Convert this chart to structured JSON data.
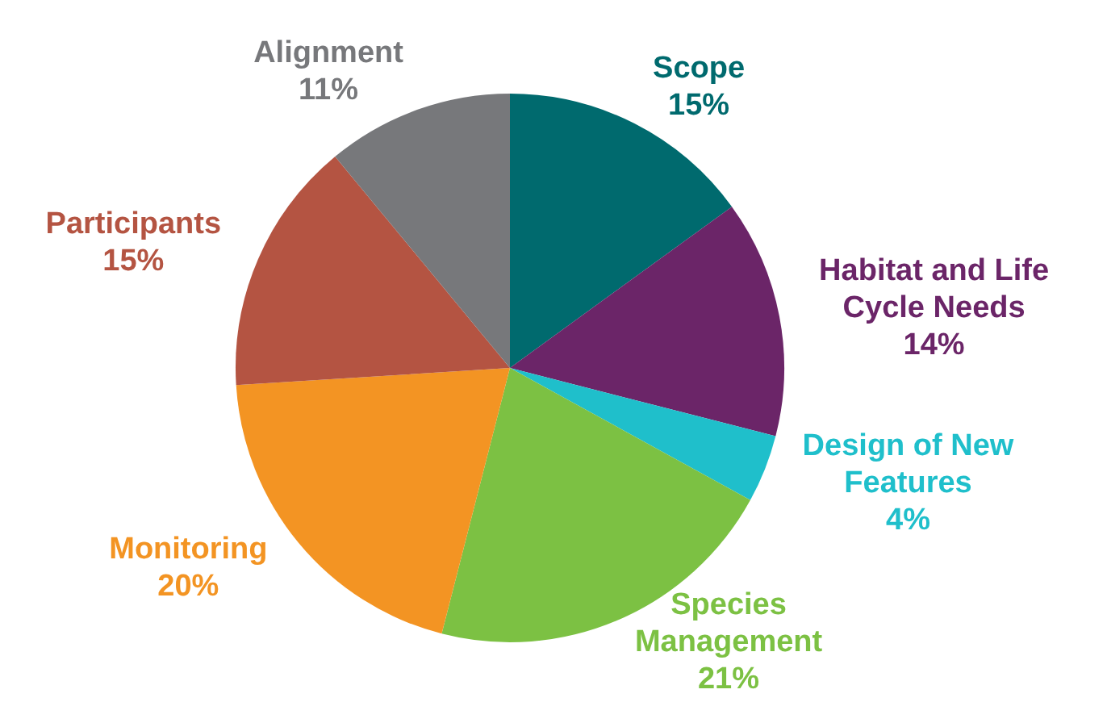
{
  "chart_data": {
    "type": "pie",
    "categories": [
      "Scope",
      "Habitat and Life Cycle Needs",
      "Design of New Features",
      "Species Management",
      "Monitoring",
      "Participants",
      "Alignment"
    ],
    "values": [
      15,
      14,
      4,
      21,
      20,
      15,
      11
    ],
    "value_labels": [
      "15%",
      "14%",
      "4%",
      "21%",
      "20%",
      "15%",
      "11%"
    ],
    "colors": [
      "#006a6e",
      "#6b2568",
      "#1fbfcb",
      "#7cc143",
      "#f39423",
      "#b45442",
      "#77787b"
    ],
    "legend": false
  }
}
